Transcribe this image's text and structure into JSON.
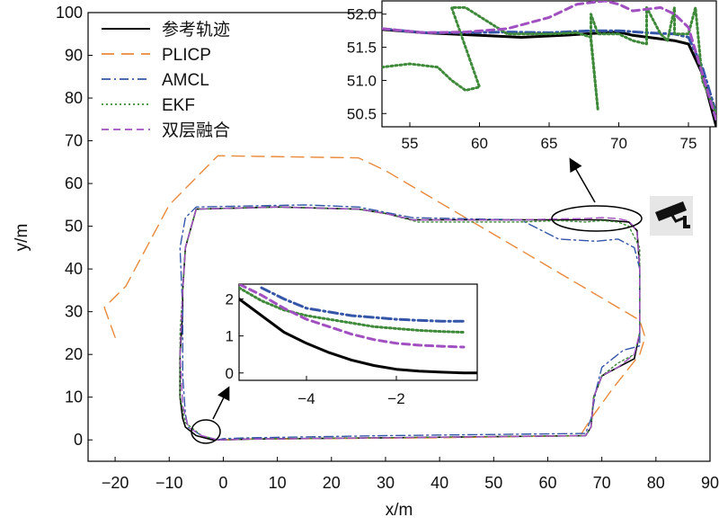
{
  "chart_data": [
    {
      "id": "main",
      "type": "line",
      "title": "",
      "xlabel": "x/m",
      "ylabel": "y/m",
      "xlim": [
        -25,
        90
      ],
      "ylim": [
        -5,
        100
      ],
      "xticks": [
        -20,
        -10,
        0,
        10,
        20,
        30,
        40,
        50,
        60,
        70,
        80,
        90
      ],
      "yticks": [
        0,
        10,
        20,
        30,
        40,
        50,
        60,
        70,
        80,
        90,
        100
      ],
      "legend_position": "top-left",
      "series": [
        {
          "name": "参考轨迹",
          "color": "#000000",
          "dash": "solid",
          "x": [
            -2,
            -5,
            -7,
            -7.5,
            -8,
            -8,
            -7.5,
            -7.5,
            -7,
            -5,
            10,
            25,
            30,
            35,
            70,
            75,
            76.5,
            77,
            77,
            76,
            73,
            70,
            68.5,
            68,
            67,
            30,
            5,
            0,
            -2
          ],
          "y": [
            0,
            1,
            3,
            5,
            10,
            20,
            30,
            35,
            45,
            54,
            54.5,
            54,
            53,
            51.5,
            51.5,
            51,
            49,
            40,
            25,
            19,
            17,
            15,
            10,
            3,
            1,
            0.5,
            0.2,
            0,
            0
          ]
        },
        {
          "name": "PLICP",
          "color": "#e9893a",
          "dash": "orange",
          "x": [
            -20,
            -22,
            -18,
            -10,
            -1,
            25,
            30,
            77,
            78,
            77,
            72,
            68,
            66,
            40,
            5,
            0
          ],
          "y": [
            24,
            31,
            36,
            55,
            66.5,
            66,
            63,
            28,
            24,
            20,
            12,
            5,
            1,
            0.5,
            0.2,
            0
          ],
          "note_segments": [
            [
              -20,
              24
            ],
            [
              -22,
              31
            ]
          ]
        },
        {
          "name": "AMCL",
          "color": "#3556a8",
          "dash": "dashdot",
          "x": [
            -1,
            -4,
            -6.5,
            -7,
            -7.5,
            -7.5,
            -8,
            -7,
            -5,
            15,
            25,
            35,
            55,
            62,
            69,
            73,
            76,
            77,
            77,
            74,
            70,
            69,
            68,
            67,
            30,
            5,
            0,
            -1
          ],
          "y": [
            0,
            1,
            3,
            6,
            15,
            30,
            45,
            52,
            54.5,
            55,
            54.5,
            52,
            51.5,
            47,
            46.5,
            47,
            45,
            40,
            22,
            21,
            17,
            12,
            5,
            1.5,
            1,
            0.5,
            0.3,
            0
          ]
        },
        {
          "name": "EKF",
          "color": "#3f8a3a",
          "dash": "dotted",
          "x": [
            -1,
            -4,
            -7,
            -8,
            -8,
            -7.5,
            -7,
            -5,
            10,
            25,
            30,
            36,
            55,
            62,
            67,
            70,
            73,
            75,
            77,
            77,
            76,
            73,
            70,
            68.5,
            68,
            67,
            30,
            5,
            0,
            -1
          ],
          "y": [
            0,
            1,
            4,
            10,
            25,
            35,
            45,
            54,
            54.5,
            54,
            53,
            51,
            51,
            51.3,
            51,
            51.3,
            51,
            50,
            45,
            25,
            20,
            18,
            15,
            10,
            3,
            1,
            0.5,
            0.2,
            0,
            0
          ]
        },
        {
          "name": "双层融合",
          "color": "#a050c0",
          "dash": "dashed",
          "x": [
            -1,
            -4,
            -6.5,
            -7.5,
            -8,
            -7.5,
            -7,
            -5,
            10,
            25,
            30,
            35,
            55,
            62,
            67,
            70,
            73,
            75,
            76.5,
            77,
            77,
            76,
            73,
            70,
            68.5,
            68,
            67,
            30,
            5,
            0,
            -1
          ],
          "y": [
            0,
            1,
            3,
            8,
            20,
            35,
            45,
            54,
            54.5,
            54,
            53,
            51.5,
            51.5,
            51.7,
            51.8,
            52,
            51.8,
            51.2,
            49,
            40,
            25,
            20,
            17,
            15,
            10,
            3,
            1,
            0.5,
            0.2,
            0,
            0
          ]
        }
      ]
    },
    {
      "id": "inset-top",
      "type": "line",
      "xlim": [
        53,
        77
      ],
      "ylim": [
        50.3,
        52.2
      ],
      "xticks": [
        55,
        60,
        65,
        70,
        75
      ],
      "yticks": [
        50.5,
        51.0,
        51.5,
        52.0
      ],
      "series": [
        {
          "name": "参考轨迹",
          "x": [
            53,
            56,
            60,
            63,
            66,
            69,
            70,
            71,
            74,
            75,
            76,
            77
          ],
          "y": [
            51.77,
            51.72,
            51.68,
            51.65,
            51.68,
            51.72,
            51.73,
            51.68,
            51.6,
            51.55,
            51.1,
            50.3
          ]
        },
        {
          "name": "PLICP",
          "x": [],
          "y": []
        },
        {
          "name": "AMCL",
          "x": [
            53,
            56,
            59,
            62,
            65,
            68,
            70,
            72,
            74,
            75,
            76,
            77
          ],
          "y": [
            51.78,
            51.72,
            51.72,
            51.73,
            51.72,
            51.75,
            51.75,
            51.72,
            51.7,
            51.65,
            51.2,
            50.5
          ]
        },
        {
          "name": "EKF",
          "x": [
            53,
            55,
            57,
            58,
            59,
            60,
            60,
            59,
            58,
            59,
            62,
            65,
            67,
            68,
            68.5,
            68,
            68,
            68.5,
            70,
            71,
            72,
            72,
            73,
            73.5,
            74,
            74,
            75,
            75.5,
            76,
            77
          ],
          "y": [
            51.2,
            51.25,
            51.2,
            51.0,
            50.85,
            50.9,
            50.9,
            51.5,
            52.1,
            52.1,
            51.7,
            51.7,
            51.72,
            51.65,
            50.55,
            51.6,
            52.0,
            51.7,
            51.7,
            51.6,
            51.55,
            52.1,
            51.7,
            51.6,
            52.1,
            51.7,
            51.7,
            52.1,
            51.0,
            50.5
          ]
        },
        {
          "name": "双层融合",
          "x": [
            53,
            56,
            59,
            62,
            65,
            67,
            69,
            70,
            71,
            73,
            74,
            75,
            76,
            77
          ],
          "y": [
            51.78,
            51.72,
            51.73,
            51.78,
            51.95,
            52.15,
            52.2,
            52.15,
            52.05,
            52.1,
            52.0,
            51.8,
            51.1,
            50.4
          ]
        }
      ]
    },
    {
      "id": "inset-bottom",
      "type": "line",
      "xlim": [
        -5.5,
        -0.2
      ],
      "ylim": [
        -0.2,
        2.4
      ],
      "xticks": [
        -4,
        -2
      ],
      "yticks": [
        0,
        1,
        2
      ],
      "series": [
        {
          "name": "参考轨迹",
          "x": [
            -5.5,
            -5,
            -4.5,
            -4,
            -3.5,
            -3,
            -2.5,
            -2,
            -1.5,
            -1,
            -0.5,
            -0.2
          ],
          "y": [
            2.0,
            1.55,
            1.1,
            0.8,
            0.55,
            0.35,
            0.2,
            0.1,
            0.05,
            0.02,
            0.0,
            0.0
          ]
        },
        {
          "name": "PLICP",
          "x": [],
          "y": []
        },
        {
          "name": "AMCL",
          "x": [
            -5,
            -4.5,
            -4,
            -3.5,
            -3,
            -2.5,
            -2,
            -1.5,
            -1,
            -0.5
          ],
          "y": [
            2.3,
            2.0,
            1.75,
            1.65,
            1.55,
            1.5,
            1.45,
            1.42,
            1.4,
            1.4
          ]
        },
        {
          "name": "EKF",
          "x": [
            -5.5,
            -5,
            -4.5,
            -4,
            -3.5,
            -3,
            -2.5,
            -2,
            -1.5,
            -1,
            -0.5
          ],
          "y": [
            2.3,
            1.95,
            1.7,
            1.55,
            1.45,
            1.35,
            1.25,
            1.2,
            1.15,
            1.12,
            1.1
          ]
        },
        {
          "name": "双层融合",
          "x": [
            -5.5,
            -5,
            -4.5,
            -4,
            -3.5,
            -3,
            -2.5,
            -2,
            -1.5,
            -1,
            -0.5
          ],
          "y": [
            2.4,
            2.1,
            1.75,
            1.45,
            1.25,
            1.05,
            0.9,
            0.8,
            0.75,
            0.72,
            0.7
          ]
        }
      ]
    }
  ],
  "colors": {
    "参考轨迹": "#000000",
    "PLICP": "#e9893a",
    "AMCL": "#3556a8",
    "EKF": "#3f8a3a",
    "双层融合": "#a050c0"
  },
  "icons": [
    "camera-icon"
  ]
}
